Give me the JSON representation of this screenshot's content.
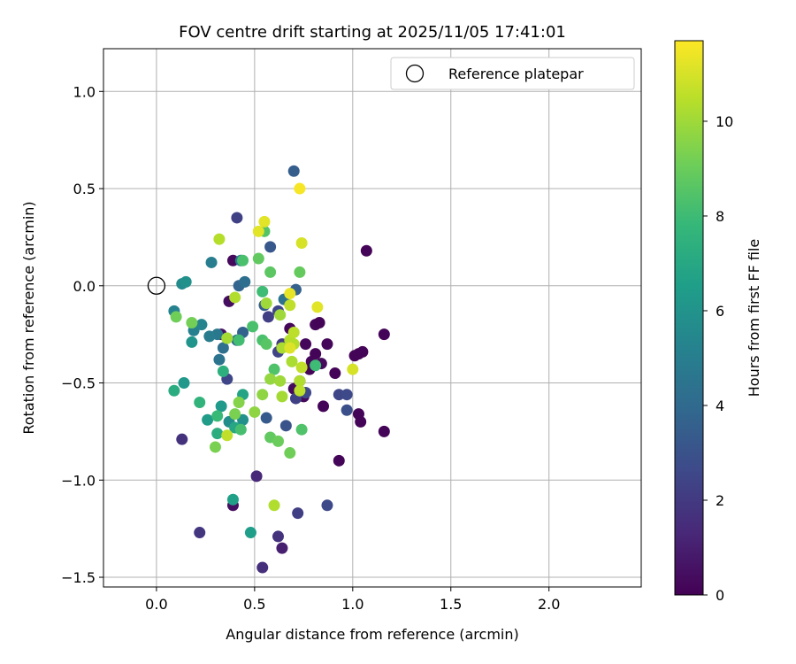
{
  "chart_data": {
    "type": "scatter",
    "title": "FOV centre drift starting at 2025/11/05 17:41:01",
    "xlabel": "Angular distance from reference (arcmin)",
    "ylabel": "Rotation from reference (arcmin)",
    "xlim": [
      -0.27,
      2.47
    ],
    "ylim": [
      -1.55,
      1.22
    ],
    "xticks": [
      0.0,
      0.5,
      1.0,
      1.5,
      2.0
    ],
    "xtick_labels": [
      "0.0",
      "0.5",
      "1.0",
      "1.5",
      "2.0"
    ],
    "yticks": [
      -1.5,
      -1.0,
      -0.5,
      0.0,
      0.5,
      1.0
    ],
    "ytick_labels": [
      "−1.5",
      "−1.0",
      "−0.5",
      "0.0",
      "0.5",
      "1.0"
    ],
    "grid": true,
    "legend": {
      "position": "top-right",
      "entries": [
        "Reference platepar"
      ]
    },
    "reference_point": {
      "x": 0.0,
      "y": 0.0
    },
    "colorbar": {
      "label": "Hours from first FF file",
      "colormap": "viridis",
      "range": [
        0,
        11.7
      ],
      "ticks": [
        0,
        2,
        4,
        6,
        8,
        10
      ],
      "tick_labels": [
        "0",
        "2",
        "4",
        "6",
        "8",
        "10"
      ]
    },
    "colormap_stops": [
      "#440154",
      "#482878",
      "#3e4989",
      "#31688e",
      "#26828e",
      "#1f9e89",
      "#35b779",
      "#6ece58",
      "#b5de2b",
      "#fde725"
    ],
    "points": [
      {
        "x": 0.39,
        "y": 0.13,
        "h": 0.3
      },
      {
        "x": 0.37,
        "y": -0.08,
        "h": 0.4
      },
      {
        "x": 0.33,
        "y": -0.25,
        "h": 0.5
      },
      {
        "x": 0.68,
        "y": -0.22,
        "h": 0.2
      },
      {
        "x": 0.7,
        "y": -0.53,
        "h": 0.3
      },
      {
        "x": 0.73,
        "y": -0.49,
        "h": 0.4
      },
      {
        "x": 0.75,
        "y": -0.57,
        "h": 0.3
      },
      {
        "x": 0.76,
        "y": -0.3,
        "h": 0.2
      },
      {
        "x": 0.78,
        "y": -0.43,
        "h": 0.1
      },
      {
        "x": 0.79,
        "y": -0.39,
        "h": 0.2
      },
      {
        "x": 0.81,
        "y": -0.35,
        "h": 0.1
      },
      {
        "x": 0.81,
        "y": -0.2,
        "h": 0.2
      },
      {
        "x": 0.83,
        "y": -0.19,
        "h": 0.1
      },
      {
        "x": 0.84,
        "y": -0.4,
        "h": 0.3
      },
      {
        "x": 0.85,
        "y": -0.62,
        "h": 0.1
      },
      {
        "x": 0.87,
        "y": -0.3,
        "h": 0.2
      },
      {
        "x": 0.91,
        "y": -0.45,
        "h": 0.1
      },
      {
        "x": 0.93,
        "y": -0.9,
        "h": 0.1
      },
      {
        "x": 1.01,
        "y": -0.36,
        "h": 0.1
      },
      {
        "x": 1.03,
        "y": -0.35,
        "h": 0.1
      },
      {
        "x": 1.05,
        "y": -0.34,
        "h": 0.1
      },
      {
        "x": 1.03,
        "y": -0.66,
        "h": 0.1
      },
      {
        "x": 1.04,
        "y": -0.7,
        "h": 0.1
      },
      {
        "x": 1.07,
        "y": 0.18,
        "h": 0.1
      },
      {
        "x": 1.16,
        "y": -0.25,
        "h": 0.1
      },
      {
        "x": 1.16,
        "y": -0.75,
        "h": 0.1
      },
      {
        "x": 0.39,
        "y": -1.13,
        "h": 0.5
      },
      {
        "x": 0.51,
        "y": -0.98,
        "h": 1.3
      },
      {
        "x": 0.54,
        "y": -1.45,
        "h": 1.6
      },
      {
        "x": 0.62,
        "y": -1.29,
        "h": 1.7
      },
      {
        "x": 0.64,
        "y": -1.35,
        "h": 1.0
      },
      {
        "x": 0.22,
        "y": -1.27,
        "h": 1.8
      },
      {
        "x": 0.13,
        "y": -0.79,
        "h": 1.7
      },
      {
        "x": 0.72,
        "y": -1.17,
        "h": 2.2
      },
      {
        "x": 0.87,
        "y": -1.13,
        "h": 2.6
      },
      {
        "x": 0.93,
        "y": -0.56,
        "h": 2.5
      },
      {
        "x": 0.97,
        "y": -0.56,
        "h": 2.6
      },
      {
        "x": 0.97,
        "y": -0.64,
        "h": 2.9
      },
      {
        "x": 0.76,
        "y": -0.55,
        "h": 2.6
      },
      {
        "x": 0.71,
        "y": -0.58,
        "h": 2.3
      },
      {
        "x": 0.66,
        "y": -0.72,
        "h": 3.0
      },
      {
        "x": 0.41,
        "y": 0.35,
        "h": 2.3
      },
      {
        "x": 0.36,
        "y": -0.48,
        "h": 2.5
      },
      {
        "x": 0.56,
        "y": -0.68,
        "h": 3.3
      },
      {
        "x": 0.57,
        "y": -0.16,
        "h": 2.2
      },
      {
        "x": 0.62,
        "y": -0.34,
        "h": 2.4
      },
      {
        "x": 0.64,
        "y": -0.3,
        "h": 2.1
      },
      {
        "x": 0.62,
        "y": -0.13,
        "h": 2.5
      },
      {
        "x": 0.7,
        "y": 0.59,
        "h": 3.5
      },
      {
        "x": 0.71,
        "y": -0.02,
        "h": 3.6
      },
      {
        "x": 0.58,
        "y": 0.2,
        "h": 3.2
      },
      {
        "x": 0.55,
        "y": -0.1,
        "h": 3.4
      },
      {
        "x": 0.42,
        "y": 0.0,
        "h": 3.8
      },
      {
        "x": 0.45,
        "y": 0.02,
        "h": 4.2
      },
      {
        "x": 0.44,
        "y": -0.24,
        "h": 3.7
      },
      {
        "x": 0.41,
        "y": -0.28,
        "h": 4.0
      },
      {
        "x": 0.34,
        "y": -0.32,
        "h": 4.3
      },
      {
        "x": 0.32,
        "y": -0.38,
        "h": 4.5
      },
      {
        "x": 0.31,
        "y": -0.25,
        "h": 4.7
      },
      {
        "x": 0.27,
        "y": -0.26,
        "h": 4.9
      },
      {
        "x": 0.28,
        "y": 0.12,
        "h": 5.0
      },
      {
        "x": 0.43,
        "y": 0.13,
        "h": 4.8
      },
      {
        "x": 0.65,
        "y": -0.07,
        "h": 4.4
      },
      {
        "x": 0.19,
        "y": -0.23,
        "h": 5.1
      },
      {
        "x": 0.23,
        "y": -0.2,
        "h": 5.3
      },
      {
        "x": 0.09,
        "y": -0.13,
        "h": 5.2
      },
      {
        "x": 0.13,
        "y": 0.01,
        "h": 5.6
      },
      {
        "x": 0.15,
        "y": 0.02,
        "h": 5.9
      },
      {
        "x": 0.18,
        "y": -0.29,
        "h": 6.1
      },
      {
        "x": 0.14,
        "y": -0.5,
        "h": 6.2
      },
      {
        "x": 0.37,
        "y": -0.7,
        "h": 5.7
      },
      {
        "x": 0.44,
        "y": -0.69,
        "h": 5.9
      },
      {
        "x": 0.33,
        "y": -0.62,
        "h": 6.3
      },
      {
        "x": 0.26,
        "y": -0.69,
        "h": 6.4
      },
      {
        "x": 0.39,
        "y": -1.1,
        "h": 6.6
      },
      {
        "x": 0.48,
        "y": -1.27,
        "h": 6.5
      },
      {
        "x": 0.44,
        "y": -0.56,
        "h": 6.8
      },
      {
        "x": 0.4,
        "y": -0.73,
        "h": 6.9
      },
      {
        "x": 0.09,
        "y": -0.54,
        "h": 7.2
      },
      {
        "x": 0.31,
        "y": -0.76,
        "h": 7.3
      },
      {
        "x": 0.34,
        "y": -0.44,
        "h": 7.4
      },
      {
        "x": 0.22,
        "y": -0.6,
        "h": 7.6
      },
      {
        "x": 0.36,
        "y": -0.27,
        "h": 7.8
      },
      {
        "x": 0.31,
        "y": -0.67,
        "h": 7.9
      },
      {
        "x": 0.43,
        "y": -0.74,
        "h": 8.2
      },
      {
        "x": 0.49,
        "y": -0.21,
        "h": 8.3
      },
      {
        "x": 0.54,
        "y": -0.03,
        "h": 8.0
      },
      {
        "x": 0.42,
        "y": -0.28,
        "h": 8.1
      },
      {
        "x": 0.54,
        "y": -0.28,
        "h": 8.3
      },
      {
        "x": 0.56,
        "y": -0.3,
        "h": 8.6
      },
      {
        "x": 0.6,
        "y": -0.43,
        "h": 8.4
      },
      {
        "x": 0.58,
        "y": 0.07,
        "h": 8.7
      },
      {
        "x": 0.52,
        "y": 0.14,
        "h": 8.8
      },
      {
        "x": 0.44,
        "y": 0.13,
        "h": 8.3
      },
      {
        "x": 0.55,
        "y": 0.28,
        "h": 8.5
      },
      {
        "x": 0.73,
        "y": 0.07,
        "h": 8.9
      },
      {
        "x": 0.81,
        "y": -0.41,
        "h": 8.0
      },
      {
        "x": 0.74,
        "y": -0.74,
        "h": 8.4
      },
      {
        "x": 0.58,
        "y": -0.78,
        "h": 8.8
      },
      {
        "x": 0.62,
        "y": -0.8,
        "h": 9.0
      },
      {
        "x": 0.68,
        "y": -0.86,
        "h": 9.1
      },
      {
        "x": 0.1,
        "y": -0.16,
        "h": 9.1
      },
      {
        "x": 0.18,
        "y": -0.19,
        "h": 9.2
      },
      {
        "x": 0.3,
        "y": -0.83,
        "h": 9.3
      },
      {
        "x": 0.4,
        "y": -0.66,
        "h": 9.3
      },
      {
        "x": 0.42,
        "y": -0.6,
        "h": 9.5
      },
      {
        "x": 0.5,
        "y": -0.65,
        "h": 9.7
      },
      {
        "x": 0.54,
        "y": -0.56,
        "h": 9.7
      },
      {
        "x": 0.58,
        "y": -0.48,
        "h": 9.8
      },
      {
        "x": 0.63,
        "y": -0.49,
        "h": 10.0
      },
      {
        "x": 0.64,
        "y": -0.57,
        "h": 10.1
      },
      {
        "x": 0.69,
        "y": -0.39,
        "h": 10.2
      },
      {
        "x": 0.73,
        "y": -0.49,
        "h": 10.3
      },
      {
        "x": 0.73,
        "y": -0.54,
        "h": 10.5
      },
      {
        "x": 0.74,
        "y": -0.42,
        "h": 10.6
      },
      {
        "x": 0.63,
        "y": -0.15,
        "h": 10.0
      },
      {
        "x": 0.56,
        "y": -0.09,
        "h": 10.0
      },
      {
        "x": 0.64,
        "y": -0.32,
        "h": 10.2
      },
      {
        "x": 0.68,
        "y": -0.28,
        "h": 10.4
      },
      {
        "x": 0.7,
        "y": -0.24,
        "h": 10.5
      },
      {
        "x": 0.7,
        "y": -0.3,
        "h": 10.4
      },
      {
        "x": 0.68,
        "y": -0.1,
        "h": 10.6
      },
      {
        "x": 0.36,
        "y": -0.27,
        "h": 10.1
      },
      {
        "x": 0.4,
        "y": -0.06,
        "h": 10.3
      },
      {
        "x": 0.32,
        "y": 0.24,
        "h": 10.4
      },
      {
        "x": 0.36,
        "y": -0.77,
        "h": 10.6
      },
      {
        "x": 0.6,
        "y": -1.13,
        "h": 10.3
      },
      {
        "x": 0.74,
        "y": 0.22,
        "h": 11.0
      },
      {
        "x": 0.55,
        "y": 0.33,
        "h": 11.2
      },
      {
        "x": 0.52,
        "y": 0.28,
        "h": 11.2
      },
      {
        "x": 0.73,
        "y": 0.5,
        "h": 11.6
      },
      {
        "x": 0.68,
        "y": -0.04,
        "h": 11.3
      },
      {
        "x": 0.82,
        "y": -0.11,
        "h": 11.2
      },
      {
        "x": 1.0,
        "y": -0.43,
        "h": 11.0
      },
      {
        "x": 0.68,
        "y": -0.32,
        "h": 11.1
      }
    ]
  }
}
